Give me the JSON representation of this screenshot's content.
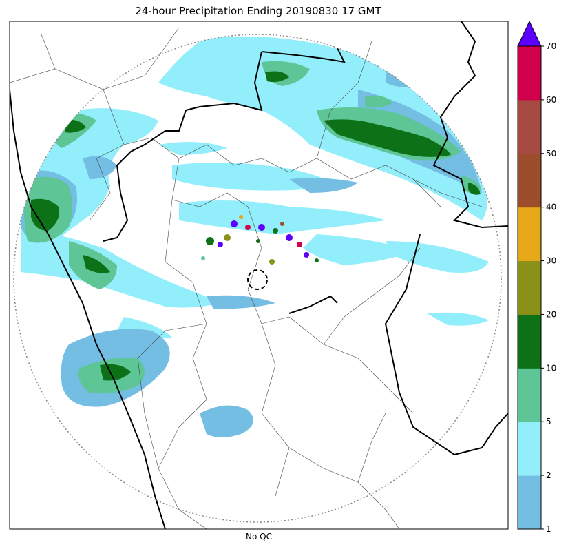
{
  "title": "24-hour Precipitation Ending 20190830 17 GMT",
  "xlabel": "No QC",
  "colorbar": {
    "levels": [
      1,
      2,
      5,
      10,
      20,
      30,
      40,
      50,
      60,
      70
    ],
    "tick_labels": [
      "1",
      "2",
      "5",
      "10",
      "20",
      "30",
      "40",
      "50",
      "60",
      "70"
    ],
    "colors": [
      "#74bde3",
      "#93eefb",
      "#5ec597",
      "#0d7217",
      "#8a9118",
      "#e6a818",
      "#9c4d2b",
      "#a74a42",
      "#d1004a"
    ],
    "extend_color": "#5b00ff"
  },
  "palette": {
    "border_state": "#000000",
    "border_district": "#444444",
    "range_ring": "#888888",
    "radar_site": "#000000"
  }
}
